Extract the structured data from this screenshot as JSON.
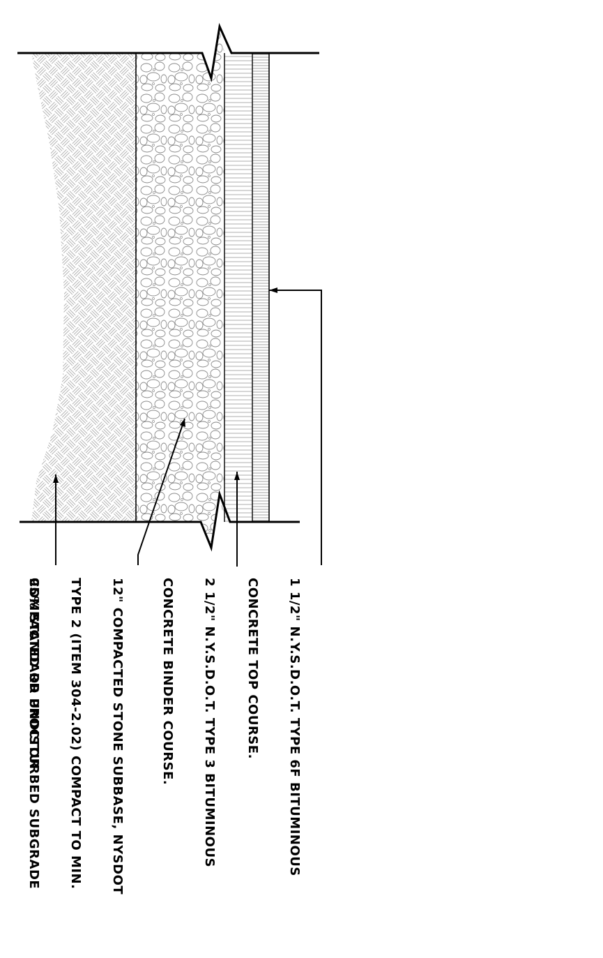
{
  "notes": {
    "top_course": [
      "1 1/2\" N.Y.S.D.O.T. TYPE 6F BITUMINOUS",
      "CONCRETE TOP COURSE."
    ],
    "binder_course": [
      "2 1/2\" N.Y.S.D.O.T. TYPE 3 BITUMINOUS",
      "CONCRETE BINDER COURSE."
    ],
    "subbase": [
      "12\" COMPACTED STONE SUBBASE, NYSDOT",
      "TYPE 2 (ITEM 304-2.02) COMPACT TO MIN.",
      "95% STANDARD PROCTOR"
    ],
    "subgrade": [
      "COMPACTED OR UNDISTURBED SUBGRADE"
    ]
  },
  "layers": [
    "subgrade",
    "stone-subbase",
    "binder-course",
    "top-course"
  ],
  "colors": {
    "line": "#000000",
    "hatch": "#9a9a9a",
    "stone": "#8a8a8a"
  }
}
